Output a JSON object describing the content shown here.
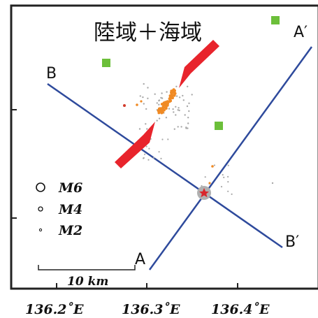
{
  "title": "陸域＋海域",
  "profiles": [
    {
      "start": "A",
      "end": "A′"
    },
    {
      "start": "B",
      "end": "B′"
    }
  ],
  "longitude_labels": [
    "136.2˚E",
    "136.3˚E",
    "136.4˚E"
  ],
  "legend": [
    {
      "label": "M6",
      "magnitude": 6
    },
    {
      "label": "M4",
      "magnitude": 4
    },
    {
      "label": "M2",
      "magnitude": 2
    }
  ],
  "scale_bar": {
    "label": "10 km"
  },
  "colors": {
    "frame": "#222222",
    "profile_line": "#2e4a9c",
    "arrow": "#e8242c",
    "station": "#6cbf3a",
    "event_orange": "#f08a24",
    "event_red": "#d23c2c",
    "event_gray": "#a9a9a9",
    "mainshock_star": "#d8262c"
  },
  "symbols": {
    "arrow": "red-arrow-icon",
    "station": "green-square-icon",
    "mainshock": "red-star-icon"
  }
}
